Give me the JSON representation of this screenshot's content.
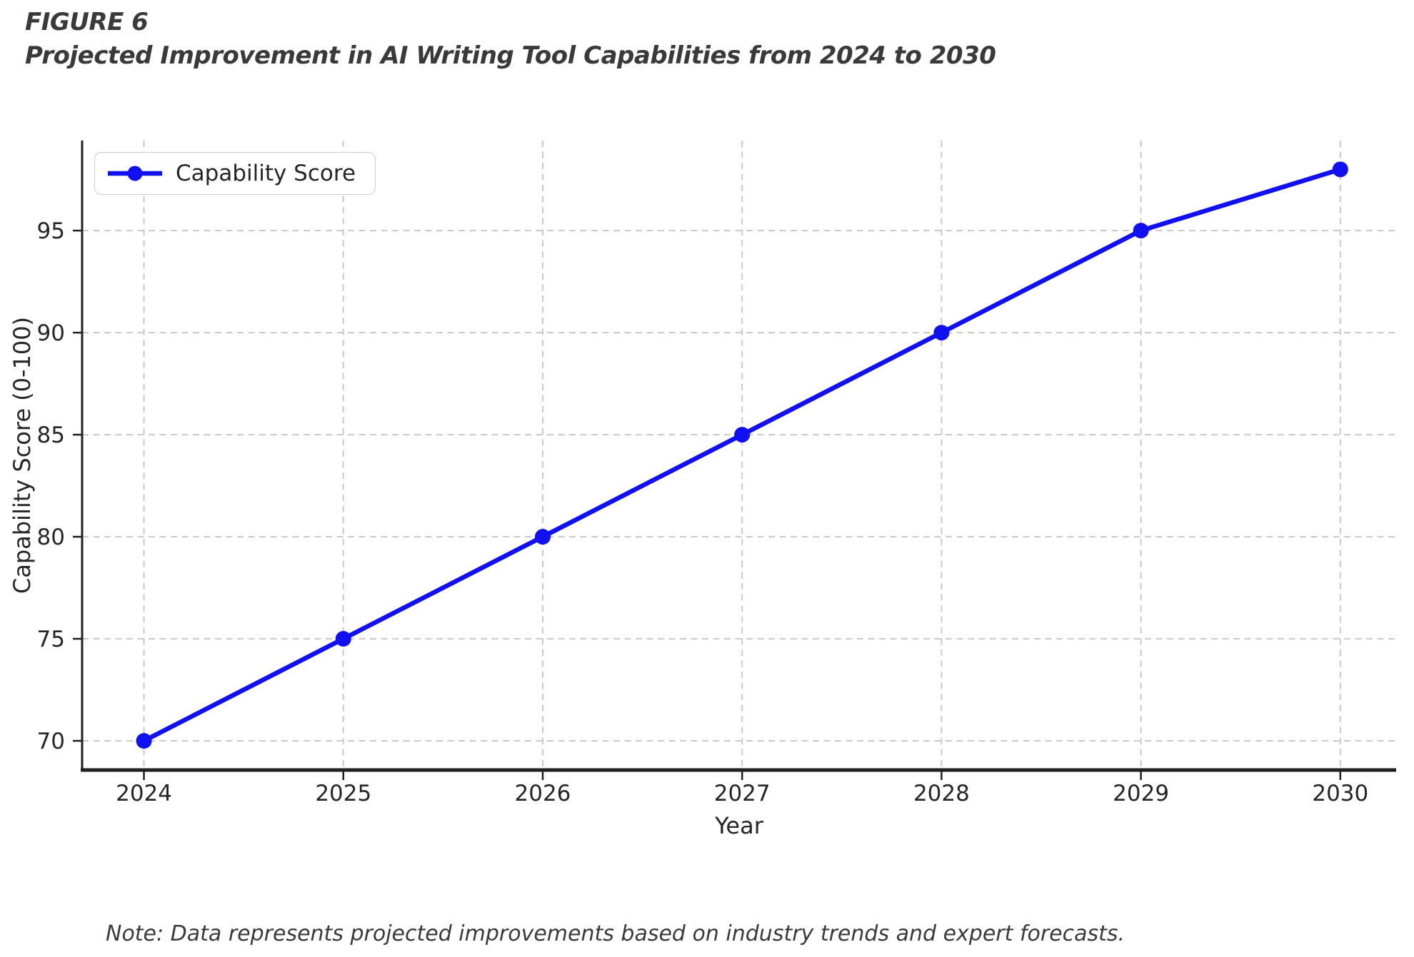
{
  "figure": {
    "label": "FIGURE 6",
    "title": "Projected Improvement in AI Writing Tool Capabilities from 2024 to 2030",
    "note": "Note: Data represents projected improvements based on industry trends and expert forecasts."
  },
  "chart_data": {
    "type": "line",
    "x": [
      2024,
      2025,
      2026,
      2027,
      2028,
      2029,
      2030
    ],
    "series": [
      {
        "name": "Capability Score",
        "values": [
          70,
          75,
          80,
          85,
          90,
          95,
          98
        ]
      }
    ],
    "title": "",
    "xlabel": "Year",
    "ylabel": "Capability Score (0-100)",
    "xticks": [
      2024,
      2025,
      2026,
      2027,
      2028,
      2029,
      2030
    ],
    "yticks": [
      70,
      75,
      80,
      85,
      90,
      95
    ],
    "xlim": [
      2023.69,
      2030.28
    ],
    "ylim": [
      68.57,
      99.41
    ],
    "grid": true,
    "grid_style": "dashed",
    "legend_position": "upper-left",
    "line_color": "#1010f0",
    "grid_color": "#c9c9c9",
    "axis_color": "#212121",
    "marker": "circle"
  }
}
